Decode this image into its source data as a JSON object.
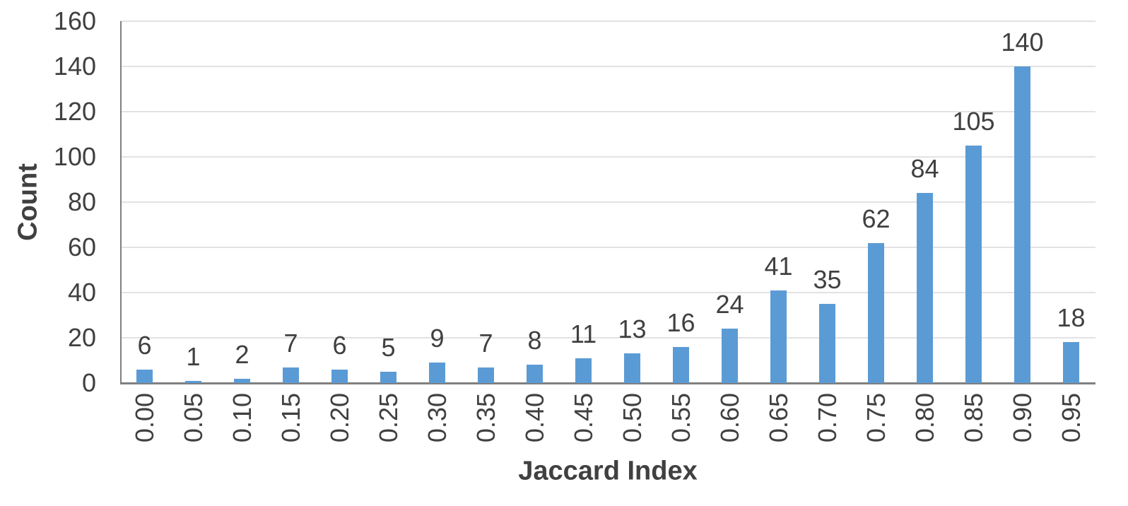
{
  "chart_data": {
    "type": "bar",
    "title": "",
    "xlabel": "Jaccard Index",
    "ylabel": "Count",
    "categories": [
      "0.00",
      "0.05",
      "0.10",
      "0.15",
      "0.20",
      "0.25",
      "0.30",
      "0.35",
      "0.40",
      "0.45",
      "0.50",
      "0.55",
      "0.60",
      "0.65",
      "0.70",
      "0.75",
      "0.80",
      "0.85",
      "0.90",
      "0.95"
    ],
    "values": [
      6,
      1,
      2,
      7,
      6,
      5,
      9,
      7,
      8,
      11,
      13,
      16,
      24,
      41,
      35,
      62,
      84,
      105,
      140,
      18
    ],
    "ylim": [
      0,
      160
    ],
    "yticks": [
      0,
      20,
      40,
      60,
      80,
      100,
      120,
      140,
      160
    ],
    "grid": "horizontal",
    "legend_position": "none",
    "data_labels": true,
    "colors": {
      "bar": "#5b9bd5",
      "gridline": "#e2e2e2",
      "axis_line": "#808080",
      "text": "#404040"
    }
  }
}
